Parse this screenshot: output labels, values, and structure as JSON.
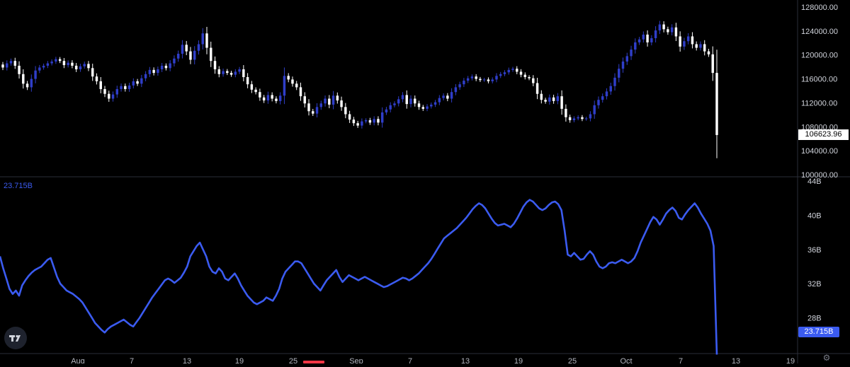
{
  "colors": {
    "background": "#000000",
    "candle_up": "#2f3ec9",
    "candle_down": "#ffffff",
    "indicator": "#3b5bf0",
    "axis_text": "#d1d4dc",
    "divider": "#2a2e39",
    "highlight": "#f23645"
  },
  "icons": {
    "logo": "tradingview-logo-icon",
    "settings": "settings-icon"
  },
  "price_panel": {
    "last_price_label": "106623.96",
    "y_ticks": [
      "128000.00",
      "124000.00",
      "120000.00",
      "116000.00",
      "112000.00",
      "108000.00",
      "104000.00",
      "100000.00"
    ]
  },
  "indicator_panel": {
    "legend_value": "23.715B",
    "last_value_label": "23.715B",
    "y_ticks": [
      "44B",
      "40B",
      "36B",
      "32B",
      "28B"
    ]
  },
  "chart_data": [
    {
      "type": "candlestick",
      "ylim": [
        100000,
        128000
      ],
      "y_ticks": [
        100000,
        104000,
        108000,
        112000,
        116000,
        120000,
        124000,
        128000
      ],
      "x_tick_labels": [
        "Aug",
        "7",
        "13",
        "19",
        "25",
        "Sep",
        "7",
        "13",
        "19",
        "25",
        "Oct",
        "7",
        "13",
        "19"
      ],
      "last_value": 106623.96,
      "series": [
        {
          "values": [
            [
              118400,
              117900
            ],
            [
              117900,
              118600
            ],
            [
              118600,
              119000
            ],
            [
              119000,
              118200
            ],
            [
              118200,
              116800
            ],
            [
              116800,
              115200
            ],
            [
              115200,
              114600
            ],
            [
              114600,
              116000
            ],
            [
              116000,
              117400
            ],
            [
              117400,
              117900
            ],
            [
              117900,
              118200
            ],
            [
              118200,
              118600
            ],
            [
              118600,
              118900
            ],
            [
              118900,
              119300
            ],
            [
              119300,
              119000
            ],
            [
              119000,
              118300
            ],
            [
              118300,
              118700
            ],
            [
              118700,
              118200
            ],
            [
              118200,
              117600
            ],
            [
              117600,
              118100
            ],
            [
              118100,
              118500
            ],
            [
              118500,
              117800
            ],
            [
              117800,
              116400
            ],
            [
              116400,
              115600
            ],
            [
              115600,
              114300
            ],
            [
              114300,
              113500
            ],
            [
              113500,
              112700
            ],
            [
              112700,
              113400
            ],
            [
              113400,
              114300
            ],
            [
              114300,
              114800
            ],
            [
              114800,
              114300
            ],
            [
              114300,
              114900
            ],
            [
              114900,
              115600
            ],
            [
              115600,
              115200
            ],
            [
              115200,
              116100
            ],
            [
              116100,
              116800
            ],
            [
              116800,
              117500
            ],
            [
              117500,
              117000
            ],
            [
              117000,
              117600
            ],
            [
              117600,
              118200
            ],
            [
              118200,
              117800
            ],
            [
              117800,
              118600
            ],
            [
              118600,
              119400
            ],
            [
              119400,
              120200
            ],
            [
              120200,
              121700
            ],
            [
              121700,
              120600
            ],
            [
              120600,
              119200
            ],
            [
              119200,
              120700
            ],
            [
              120700,
              121800
            ],
            [
              121800,
              123600
            ],
            [
              123600,
              121200
            ],
            [
              121200,
              119000
            ],
            [
              119000,
              117600
            ],
            [
              117600,
              116800
            ],
            [
              116800,
              117300
            ],
            [
              117300,
              117000
            ],
            [
              117000,
              116700
            ],
            [
              116700,
              117200
            ],
            [
              117200,
              117600
            ],
            [
              117600,
              116300
            ],
            [
              116300,
              115100
            ],
            [
              115100,
              114200
            ],
            [
              114200,
              113800
            ],
            [
              113800,
              112900
            ],
            [
              112900,
              112400
            ],
            [
              112400,
              113300
            ],
            [
              113300,
              112700
            ],
            [
              112700,
              112300
            ],
            [
              112300,
              113200
            ],
            [
              113200,
              116500
            ],
            [
              116500,
              115900
            ],
            [
              115900,
              115200
            ],
            [
              115200,
              114600
            ],
            [
              114600,
              113100
            ],
            [
              113100,
              111900
            ],
            [
              111900,
              110600
            ],
            [
              110600,
              110200
            ],
            [
              110200,
              111300
            ],
            [
              111300,
              111900
            ],
            [
              111900,
              112700
            ],
            [
              112700,
              111700
            ],
            [
              111700,
              113200
            ],
            [
              113200,
              112400
            ],
            [
              112400,
              111300
            ],
            [
              111300,
              110100
            ],
            [
              110100,
              109200
            ],
            [
              109200,
              108600
            ],
            [
              108600,
              108200
            ],
            [
              108200,
              108900
            ],
            [
              108900,
              109100
            ],
            [
              109100,
              108700
            ],
            [
              108700,
              109300
            ],
            [
              109300,
              108700
            ],
            [
              108700,
              110400
            ],
            [
              110400,
              110900
            ],
            [
              110900,
              111600
            ],
            [
              111600,
              111900
            ],
            [
              111900,
              112600
            ],
            [
              112600,
              113300
            ],
            [
              113300,
              111800
            ],
            [
              111800,
              112700
            ],
            [
              112700,
              111900
            ],
            [
              111900,
              111300
            ],
            [
              111300,
              111000
            ],
            [
              111000,
              111400
            ],
            [
              111400,
              111700
            ],
            [
              111700,
              112100
            ],
            [
              112100,
              112800
            ],
            [
              112800,
              113200
            ],
            [
              113200,
              112700
            ],
            [
              112700,
              113800
            ],
            [
              113800,
              114600
            ],
            [
              114600,
              115100
            ],
            [
              115100,
              115700
            ],
            [
              115700,
              116100
            ],
            [
              116100,
              116400
            ],
            [
              116400,
              116000
            ],
            [
              116000,
              115800
            ],
            [
              115800,
              115900
            ],
            [
              115900,
              115600
            ],
            [
              115600,
              115900
            ],
            [
              115900,
              116500
            ],
            [
              116500,
              116800
            ],
            [
              116800,
              117100
            ],
            [
              117100,
              117500
            ],
            [
              117500,
              117700
            ],
            [
              117700,
              117200
            ],
            [
              117200,
              116700
            ],
            [
              116700,
              116300
            ],
            [
              116300,
              116100
            ],
            [
              116100,
              115300
            ],
            [
              115300,
              113500
            ],
            [
              113500,
              112500
            ],
            [
              112500,
              112200
            ],
            [
              112200,
              112900
            ],
            [
              112900,
              112300
            ],
            [
              112300,
              113100
            ],
            [
              113100,
              111000
            ],
            [
              111000,
              109600
            ],
            [
              109600,
              109100
            ],
            [
              109100,
              109400
            ],
            [
              109400,
              109600
            ],
            [
              109600,
              109300
            ],
            [
              109300,
              109400
            ],
            [
              109400,
              110100
            ],
            [
              110100,
              111600
            ],
            [
              111600,
              112500
            ],
            [
              112500,
              113100
            ],
            [
              113100,
              113900
            ],
            [
              113900,
              114800
            ],
            [
              114800,
              116200
            ],
            [
              116200,
              117700
            ],
            [
              117700,
              118900
            ],
            [
              118900,
              119800
            ],
            [
              119800,
              120900
            ],
            [
              120900,
              122100
            ],
            [
              122100,
              122600
            ],
            [
              122600,
              123400
            ],
            [
              123400,
              122100
            ],
            [
              122100,
              122800
            ],
            [
              122800,
              124100
            ],
            [
              124100,
              125100
            ],
            [
              125100,
              124300
            ],
            [
              124300,
              123800
            ],
            [
              123800,
              124600
            ],
            [
              124600,
              123100
            ],
            [
              123100,
              121400
            ],
            [
              121400,
              122300
            ],
            [
              122300,
              123100
            ],
            [
              123100,
              121800
            ],
            [
              121800,
              121200
            ],
            [
              121200,
              121800
            ],
            [
              121800,
              120600
            ],
            [
              120600,
              120100
            ],
            [
              120100,
              117000
            ],
            [
              117000,
              106623.96
            ]
          ]
        }
      ]
    },
    {
      "type": "line",
      "ylim": [
        24,
        44
      ],
      "y_ticks": [
        28,
        32,
        36,
        40,
        44
      ],
      "unit": "B",
      "last_value": 23.715,
      "series": [
        {
          "values": [
            35.2,
            33.8,
            32.6,
            31.4,
            30.8,
            31.2,
            30.6,
            31.8,
            32.4,
            32.9,
            33.3,
            33.6,
            33.8,
            34.0,
            34.4,
            34.8,
            35.0,
            33.9,
            32.8,
            32.0,
            31.6,
            31.2,
            31.0,
            30.8,
            30.5,
            30.2,
            29.8,
            29.2,
            28.6,
            28.0,
            27.4,
            27.0,
            26.6,
            26.3,
            26.7,
            27.0,
            27.2,
            27.4,
            27.6,
            27.8,
            27.5,
            27.2,
            27.0,
            27.5,
            28.0,
            28.6,
            29.2,
            29.8,
            30.4,
            30.9,
            31.4,
            31.9,
            32.4,
            32.6,
            32.4,
            32.1,
            32.4,
            32.7,
            33.3,
            34.0,
            35.2,
            35.8,
            36.4,
            36.8,
            36.0,
            35.2,
            34.0,
            33.4,
            33.2,
            33.8,
            33.4,
            32.6,
            32.4,
            32.8,
            33.2,
            32.6,
            31.8,
            31.2,
            30.6,
            30.2,
            29.8,
            29.6,
            29.8,
            30.0,
            30.4,
            30.2,
            30.0,
            30.6,
            31.4,
            32.6,
            33.4,
            33.8,
            34.2,
            34.6,
            34.6,
            34.4,
            33.8,
            33.2,
            32.6,
            32.0,
            31.6,
            31.2,
            31.8,
            32.4,
            32.8,
            33.2,
            33.6,
            32.8,
            32.2,
            32.6,
            33.0,
            32.8,
            32.6,
            32.4,
            32.6,
            32.8,
            32.6,
            32.4,
            32.2,
            32.0,
            31.8,
            31.6,
            31.7,
            31.9,
            32.1,
            32.3,
            32.5,
            32.7,
            32.6,
            32.4,
            32.6,
            32.9,
            33.2,
            33.6,
            34.0,
            34.4,
            34.9,
            35.5,
            36.1,
            36.7,
            37.3,
            37.6,
            37.9,
            38.2,
            38.5,
            38.9,
            39.3,
            39.7,
            40.2,
            40.7,
            41.1,
            41.4,
            41.2,
            40.8,
            40.2,
            39.6,
            39.1,
            38.8,
            38.9,
            39.0,
            38.8,
            38.6,
            39.0,
            39.6,
            40.3,
            41.0,
            41.5,
            41.8,
            41.6,
            41.2,
            40.8,
            40.6,
            40.8,
            41.2,
            41.5,
            41.6,
            41.3,
            40.6,
            38.2,
            35.4,
            35.2,
            35.6,
            35.2,
            34.8,
            34.9,
            35.4,
            35.8,
            35.4,
            34.6,
            34.0,
            33.8,
            34.0,
            34.4,
            34.5,
            34.4,
            34.6,
            34.8,
            34.6,
            34.4,
            34.6,
            35.0,
            35.8,
            36.8,
            37.6,
            38.4,
            39.2,
            39.8,
            39.5,
            38.9,
            39.5,
            40.2,
            40.6,
            40.9,
            40.5,
            39.7,
            39.5,
            40.1,
            40.6,
            41.0,
            41.4,
            40.9,
            40.2,
            39.6,
            39.0,
            38.2,
            36.4,
            23.715
          ]
        }
      ]
    }
  ]
}
